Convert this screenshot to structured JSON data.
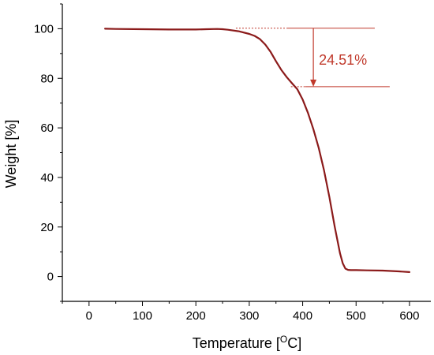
{
  "chart_data": {
    "type": "line",
    "xlabel": "Temperature [",
    "xlabel_sup": "O",
    "xlabel_end": "C]",
    "ylabel": "Weight [%]",
    "xlim": [
      -50,
      640
    ],
    "ylim": [
      -10,
      110
    ],
    "xticks": [
      0,
      100,
      200,
      300,
      400,
      500,
      600
    ],
    "yticks": [
      0,
      20,
      40,
      60,
      80,
      100
    ],
    "grid": false,
    "series": [
      {
        "color": "#8b1a1a",
        "x": [
          30,
          50,
          100,
          150,
          200,
          220,
          240,
          250,
          260,
          280,
          300,
          310,
          320,
          330,
          340,
          350,
          360,
          370,
          380,
          390,
          400,
          410,
          420,
          430,
          440,
          450,
          460,
          470,
          475,
          480,
          485,
          490,
          500,
          520,
          550,
          580,
          600
        ],
        "y": [
          100.0,
          99.9,
          99.8,
          99.7,
          99.7,
          99.8,
          99.9,
          99.8,
          99.6,
          99.0,
          97.9,
          97.1,
          95.8,
          93.6,
          90.6,
          86.9,
          83.4,
          80.5,
          78.0,
          75.6,
          71.4,
          66.0,
          59.5,
          51.9,
          42.9,
          32.1,
          20.1,
          9.4,
          5.4,
          3.2,
          2.7,
          2.6,
          2.6,
          2.5,
          2.4,
          2.1,
          1.8
        ]
      }
    ],
    "annotation": {
      "label": "24.51%",
      "from_y": 100.2,
      "to_y": 76.6,
      "arrow_x": 420,
      "color": "#c0392b"
    }
  }
}
